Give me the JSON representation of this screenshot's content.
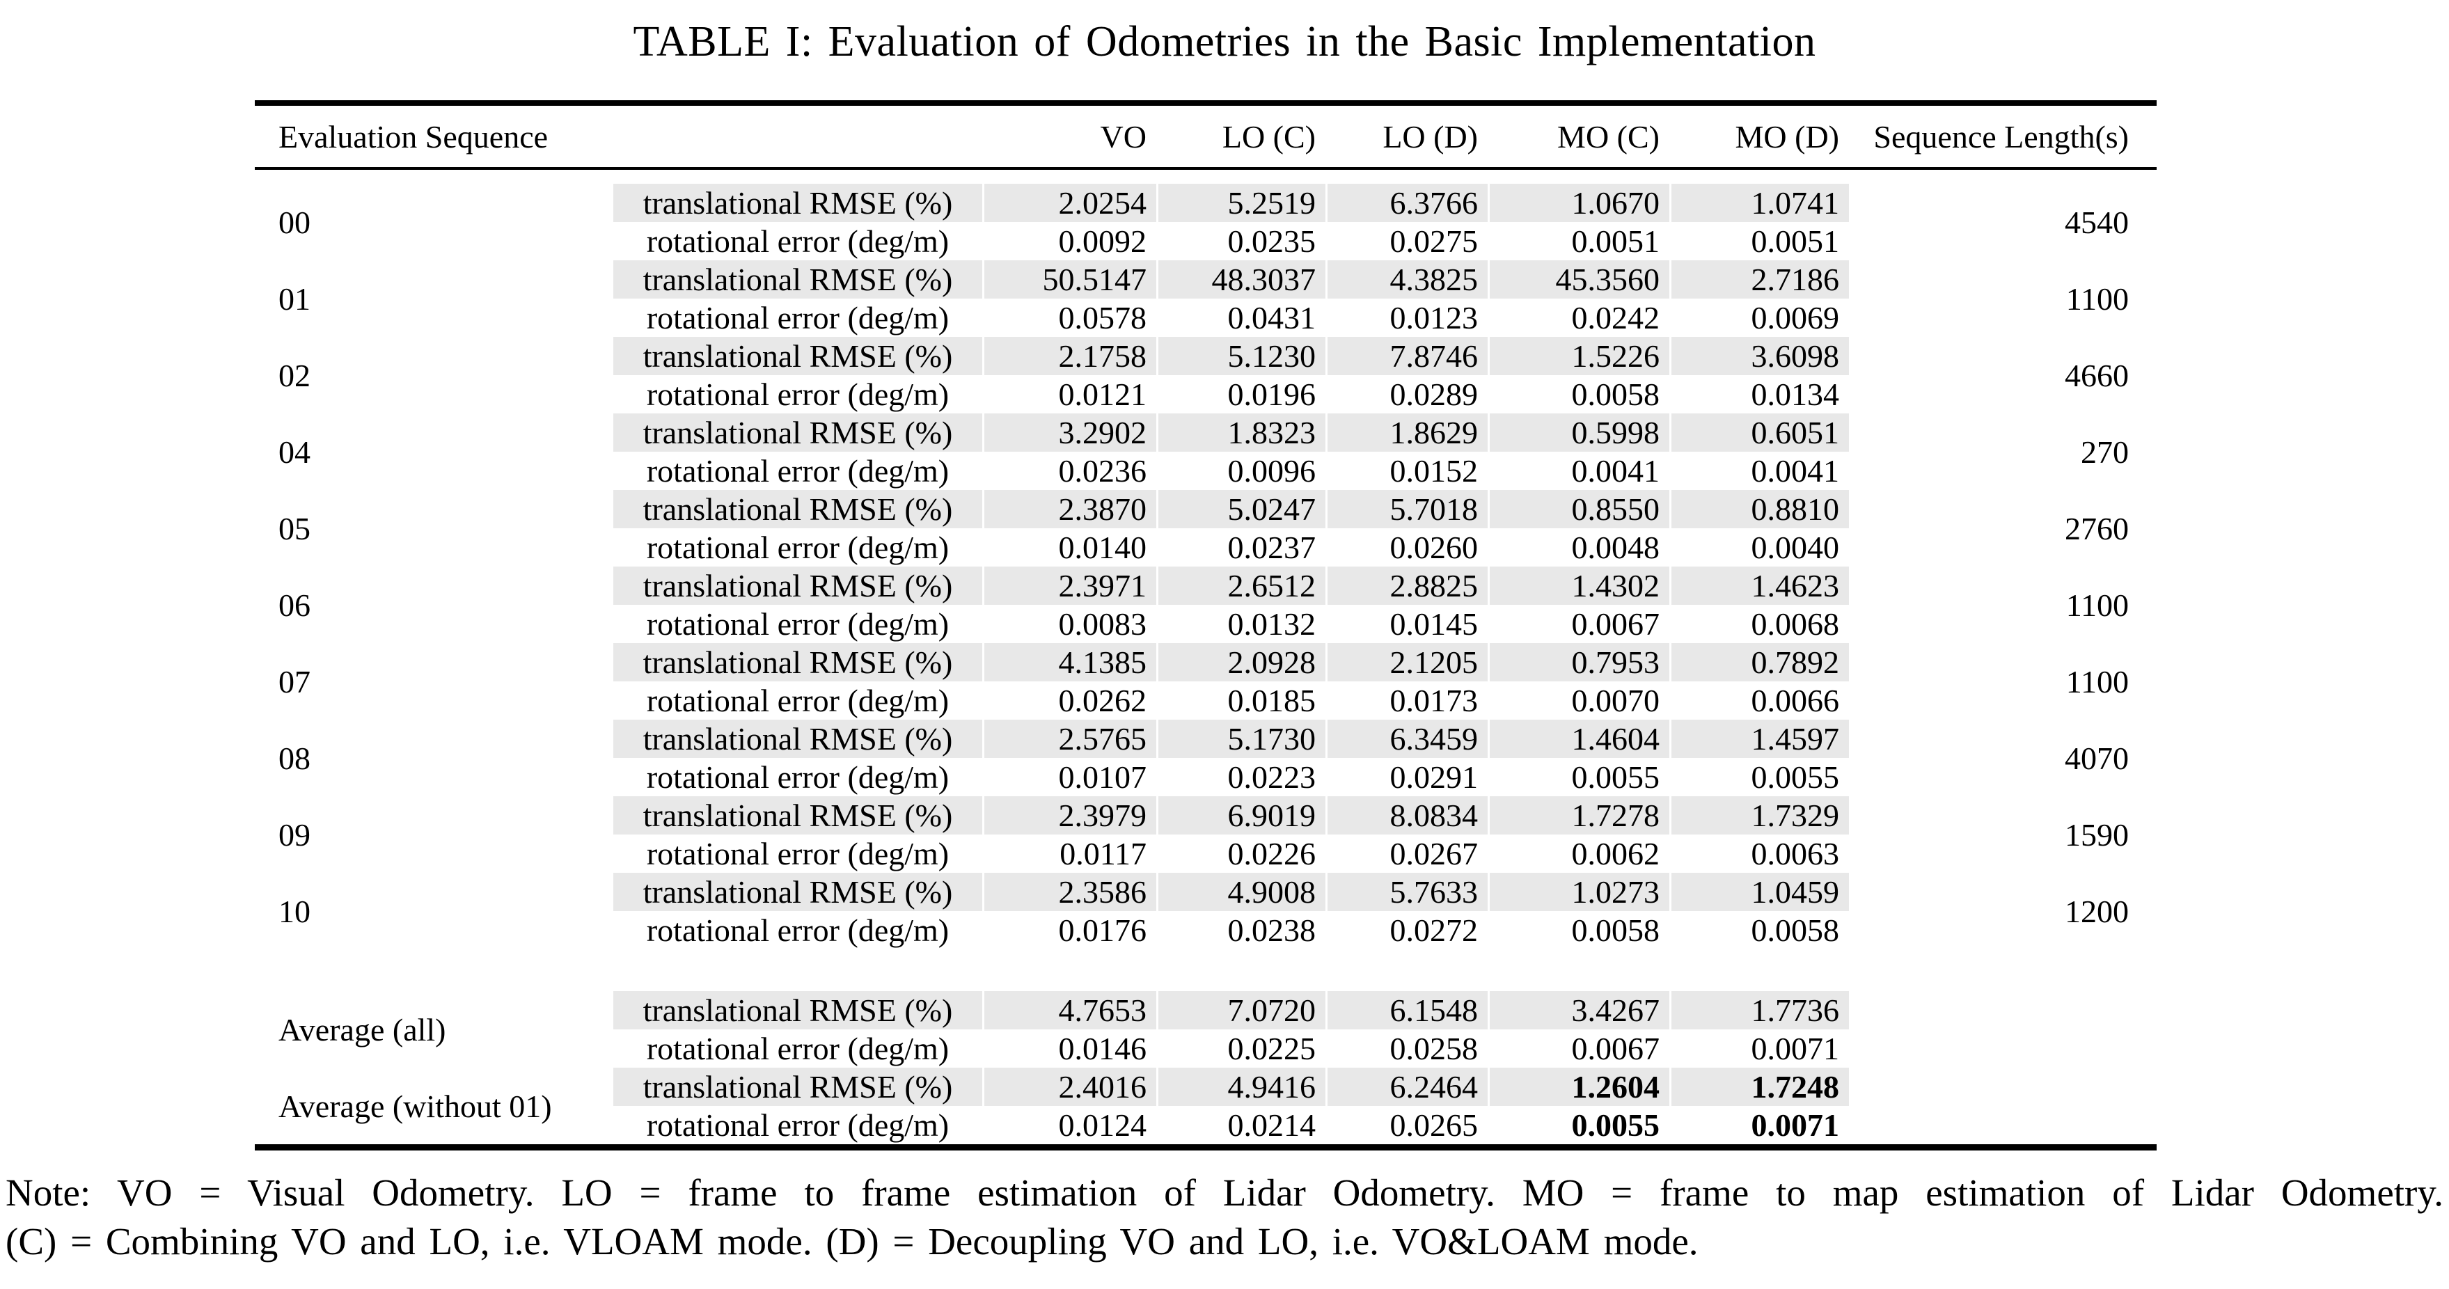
{
  "title": "TABLE I: Evaluation of Odometries in the Basic Implementation",
  "colors": {
    "row_shade": "#e8e8e8",
    "text": "#000000",
    "background": "#ffffff"
  },
  "table": {
    "columns": [
      "Evaluation Sequence",
      "VO",
      "LO (C)",
      "LO (D)",
      "MO (C)",
      "MO (D)",
      "Sequence Length(s)"
    ],
    "metric_labels": {
      "translational": "translational RMSE (%)",
      "rotational": "rotational error (deg/m)"
    },
    "rows": [
      {
        "sequence": "00",
        "length": "4540",
        "translational": [
          "2.0254",
          "5.2519",
          "6.3766",
          "1.0670",
          "1.0741"
        ],
        "rotational": [
          "0.0092",
          "0.0235",
          "0.0275",
          "0.0051",
          "0.0051"
        ]
      },
      {
        "sequence": "01",
        "length": "1100",
        "translational": [
          "50.5147",
          "48.3037",
          "4.3825",
          "45.3560",
          "2.7186"
        ],
        "rotational": [
          "0.0578",
          "0.0431",
          "0.0123",
          "0.0242",
          "0.0069"
        ]
      },
      {
        "sequence": "02",
        "length": "4660",
        "translational": [
          "2.1758",
          "5.1230",
          "7.8746",
          "1.5226",
          "3.6098"
        ],
        "rotational": [
          "0.0121",
          "0.0196",
          "0.0289",
          "0.0058",
          "0.0134"
        ]
      },
      {
        "sequence": "04",
        "length": "270",
        "translational": [
          "3.2902",
          "1.8323",
          "1.8629",
          "0.5998",
          "0.6051"
        ],
        "rotational": [
          "0.0236",
          "0.0096",
          "0.0152",
          "0.0041",
          "0.0041"
        ]
      },
      {
        "sequence": "05",
        "length": "2760",
        "translational": [
          "2.3870",
          "5.0247",
          "5.7018",
          "0.8550",
          "0.8810"
        ],
        "rotational": [
          "0.0140",
          "0.0237",
          "0.0260",
          "0.0048",
          "0.0040"
        ]
      },
      {
        "sequence": "06",
        "length": "1100",
        "translational": [
          "2.3971",
          "2.6512",
          "2.8825",
          "1.4302",
          "1.4623"
        ],
        "rotational": [
          "0.0083",
          "0.0132",
          "0.0145",
          "0.0067",
          "0.0068"
        ]
      },
      {
        "sequence": "07",
        "length": "1100",
        "translational": [
          "4.1385",
          "2.0928",
          "2.1205",
          "0.7953",
          "0.7892"
        ],
        "rotational": [
          "0.0262",
          "0.0185",
          "0.0173",
          "0.0070",
          "0.0066"
        ]
      },
      {
        "sequence": "08",
        "length": "4070",
        "translational": [
          "2.5765",
          "5.1730",
          "6.3459",
          "1.4604",
          "1.4597"
        ],
        "rotational": [
          "0.0107",
          "0.0223",
          "0.0291",
          "0.0055",
          "0.0055"
        ]
      },
      {
        "sequence": "09",
        "length": "1590",
        "translational": [
          "2.3979",
          "6.9019",
          "8.0834",
          "1.7278",
          "1.7329"
        ],
        "rotational": [
          "0.0117",
          "0.0226",
          "0.0267",
          "0.0062",
          "0.0063"
        ]
      },
      {
        "sequence": "10",
        "length": "1200",
        "translational": [
          "2.3586",
          "4.9008",
          "5.7633",
          "1.0273",
          "1.0459"
        ],
        "rotational": [
          "0.0176",
          "0.0238",
          "0.0272",
          "0.0058",
          "0.0058"
        ]
      }
    ],
    "averages": [
      {
        "label": "Average (all)",
        "translational": [
          "4.7653",
          "7.0720",
          "6.1548",
          "3.4267",
          "1.7736"
        ],
        "rotational": [
          "0.0146",
          "0.0225",
          "0.0258",
          "0.0067",
          "0.0071"
        ],
        "bold_indices": []
      },
      {
        "label": "Average (without 01)",
        "translational": [
          "2.4016",
          "4.9416",
          "6.2464",
          "1.2604",
          "1.7248"
        ],
        "rotational": [
          "0.0124",
          "0.0214",
          "0.0265",
          "0.0055",
          "0.0071"
        ],
        "bold_indices": [
          3,
          4
        ]
      }
    ]
  },
  "note": {
    "line1": "Note: VO = Visual Odometry. LO = frame to frame estimation of Lidar Odometry. MO = frame to map estimation of Lidar Odometry.",
    "line2": "(C) = Combining VO and LO, i.e. VLOAM mode. (D) = Decoupling VO and LO, i.e. VO&LOAM mode."
  }
}
